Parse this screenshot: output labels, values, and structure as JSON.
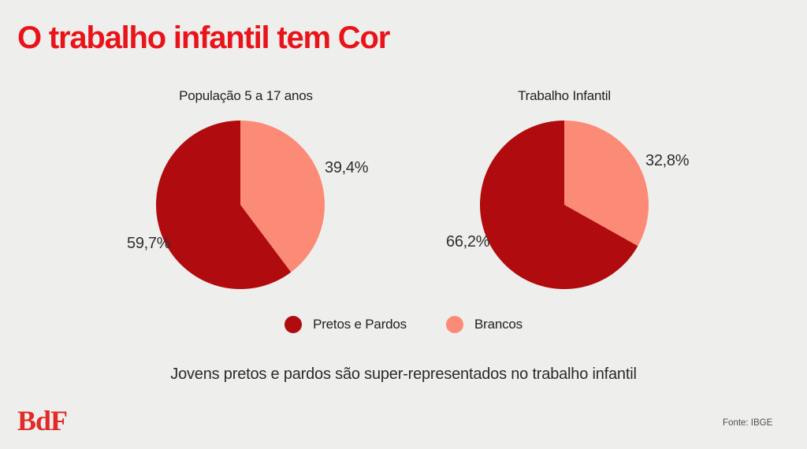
{
  "page": {
    "title": "O trabalho infantil tem Cor",
    "subtitle": "Jovens pretos e pardos são super-representados no trabalho infantil",
    "background_color": "#eeefed",
    "title_color": "#e8141a"
  },
  "colors": {
    "dark_red": "#b00b0e",
    "salmon": "#fb8a76",
    "label_text": "#2e2e2e"
  },
  "chart_data": [
    {
      "type": "pie",
      "title": "População 5 a 17 anos",
      "start_angle": "top",
      "direction": "clockwise-minor-first",
      "slices": [
        {
          "label": "Pretos e Pardos",
          "value": 59.7,
          "display_value": "59,7%",
          "color": "#b00b0e"
        },
        {
          "label": "Brancos",
          "value": 39.4,
          "display_value": "39,4%",
          "color": "#fb8a76"
        }
      ]
    },
    {
      "type": "pie",
      "title": "Trabalho Infantil",
      "start_angle": "top",
      "direction": "clockwise-minor-first",
      "slices": [
        {
          "label": "Pretos e Pardos",
          "value": 66.2,
          "display_value": "66,2%",
          "color": "#b00b0e"
        },
        {
          "label": "Brancos",
          "value": 32.8,
          "display_value": "32,8%",
          "color": "#fb8a76"
        }
      ]
    }
  ],
  "legend": [
    {
      "label": "Pretos e Pardos",
      "color": "#b00b0e"
    },
    {
      "label": "Brancos",
      "color": "#fb8a76"
    }
  ],
  "footer": {
    "logo_text": "BdF",
    "source": "Fonte: IBGE"
  }
}
